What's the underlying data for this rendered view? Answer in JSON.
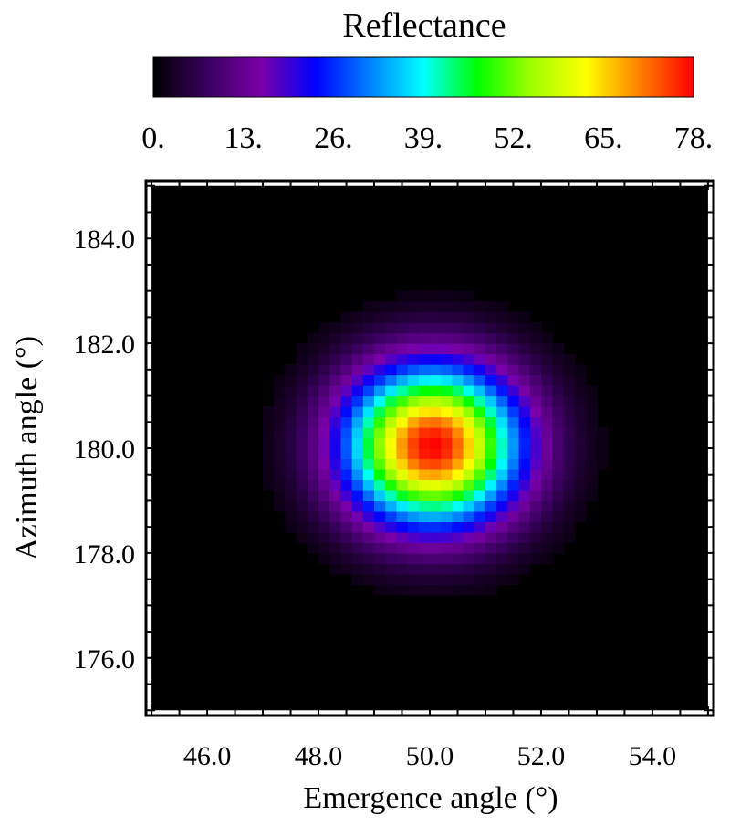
{
  "chart_data": {
    "type": "heatmap",
    "colorbar": {
      "title": "Reflectance",
      "min": 0,
      "max": 78,
      "tick_labels": [
        "0.",
        "13.",
        "26.",
        "39.",
        "52.",
        "65.",
        "78."
      ],
      "colormap": [
        "#000000",
        "#3a0060",
        "#7a00a8",
        "#0000ff",
        "#0080ff",
        "#00ffff",
        "#00ff00",
        "#a0ff00",
        "#ffff00",
        "#ff8000",
        "#ff0000"
      ]
    },
    "xlabel": "Emergence angle  (°)",
    "ylabel": "Azimuth angle (°)",
    "xlim": [
      44.9,
      55.1
    ],
    "ylim": [
      174.9,
      185.1
    ],
    "x_ticks": [
      46.0,
      48.0,
      50.0,
      52.0,
      54.0
    ],
    "x_tick_labels": [
      "46.0",
      "48.0",
      "50.0",
      "52.0",
      "54.0"
    ],
    "y_ticks": [
      176.0,
      178.0,
      180.0,
      182.0,
      184.0
    ],
    "y_tick_labels": [
      "176.0",
      "178.0",
      "180.0",
      "182.0",
      "184.0"
    ],
    "heatmap": {
      "x_range": [
        45.0,
        55.0
      ],
      "y_range": [
        175.0,
        185.0
      ],
      "nx": 50,
      "ny": 50,
      "peak_value": 78,
      "center": [
        50.05,
        180.05
      ],
      "sigma_x": 1.1,
      "sigma_y": 1.05
    }
  }
}
